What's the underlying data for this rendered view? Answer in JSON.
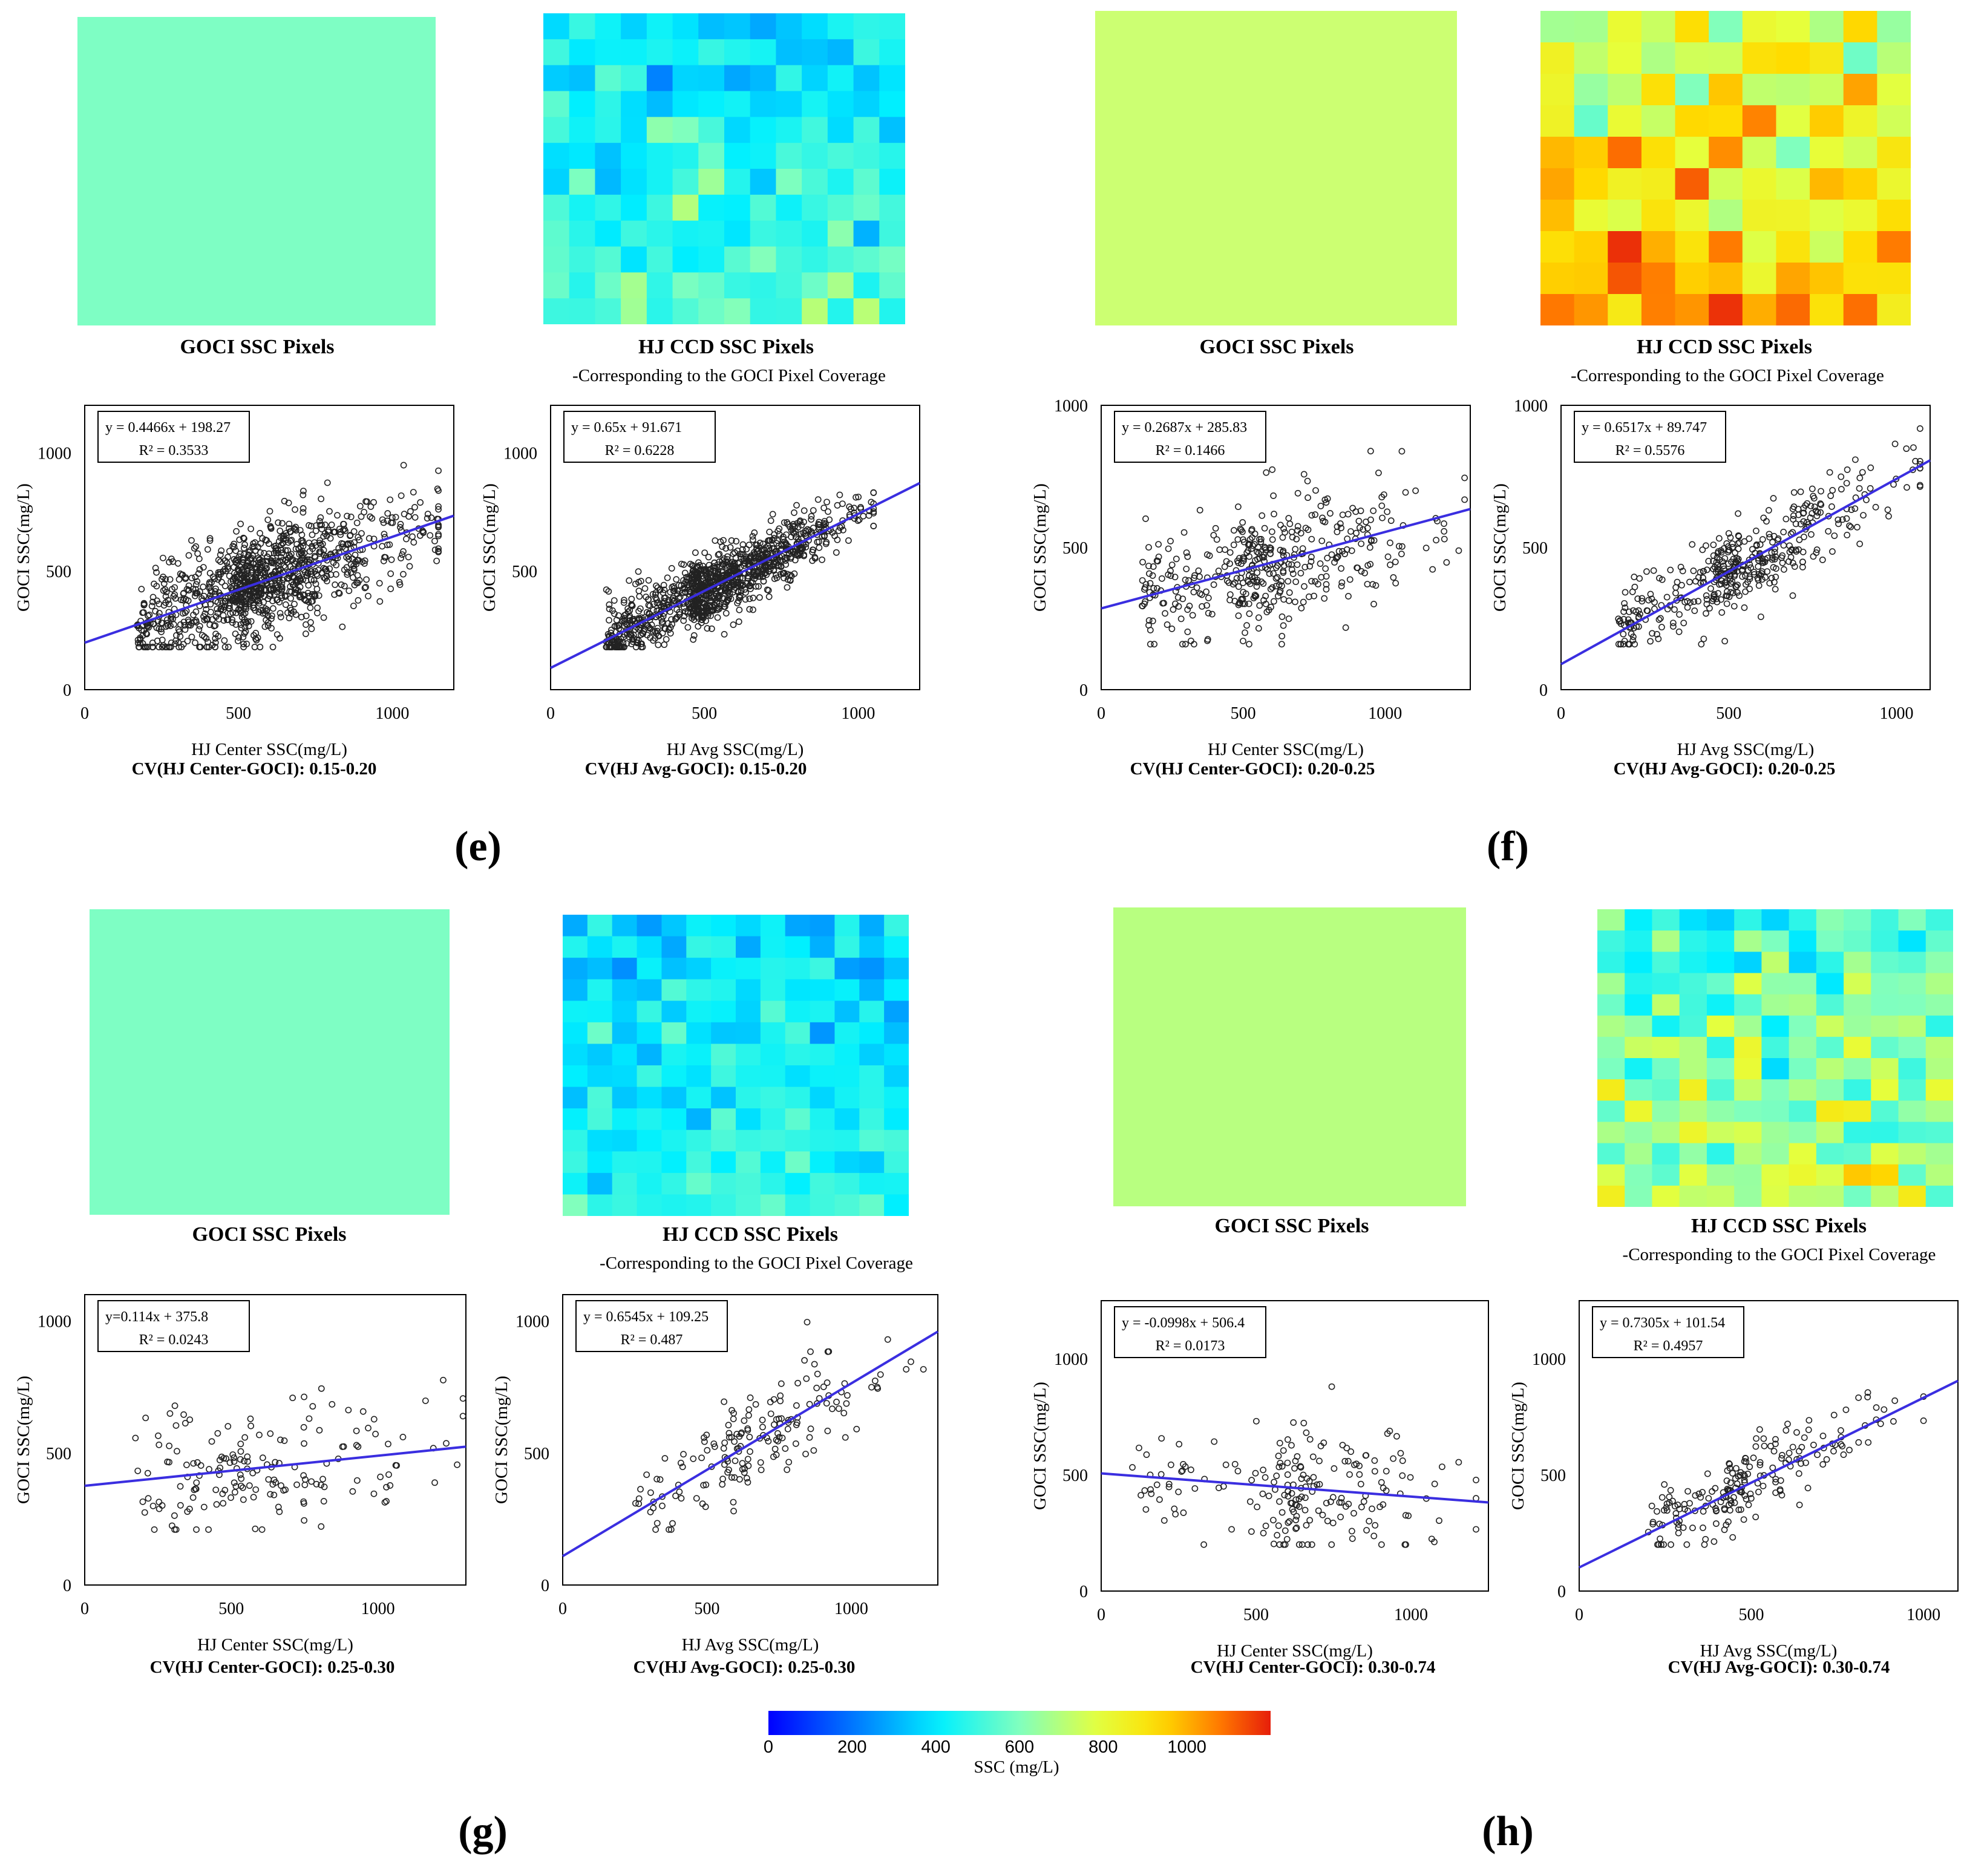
{
  "labels": {
    "goci_title": "GOCI SSC Pixels",
    "hj_title": "HJ CCD SSC Pixels",
    "hj_subtitle": "-Corresponding to the GOCI Pixel Coverage",
    "ylabel": "GOCI SSC(mg/L)",
    "xlabel_center": "HJ Center SSC(mg/L)",
    "xlabel_avg": "HJ Avg SSC(mg/L)"
  },
  "colorbar": {
    "title": "SSC (mg/L)",
    "ticks": [
      "0",
      "200",
      "400",
      "600",
      "800",
      "1000"
    ],
    "tick_values": [
      0,
      200,
      400,
      600,
      800,
      1000
    ],
    "vmax": 1200
  },
  "panels": {
    "e": {
      "letter": "(e)",
      "goci_color": "#7efec4",
      "heat_seed": 11,
      "heat_base": 470,
      "heat_spread": 130,
      "heat_cols": 14,
      "heat_rows": 12,
      "cv_center": "CV(HJ Center-GOCI): 0.15-0.20",
      "cv_avg": "CV(HJ Avg-GOCI): 0.15-0.20"
    },
    "f": {
      "letter": "(f)",
      "goci_color": "#ccff72",
      "heat_seed": 23,
      "heat_base": 880,
      "heat_spread": 170,
      "heat_cols": 11,
      "heat_rows": 10,
      "cv_center": "CV(HJ Center-GOCI): 0.20-0.25",
      "cv_avg": "CV(HJ Avg-GOCI): 0.20-0.25"
    },
    "g": {
      "letter": "(g)",
      "goci_color": "#7efec4",
      "heat_seed": 37,
      "heat_base": 430,
      "heat_spread": 110,
      "heat_cols": 14,
      "heat_rows": 14,
      "cv_center": "CV(HJ Center-GOCI): 0.25-0.30",
      "cv_avg": "CV(HJ Avg-GOCI): 0.25-0.30"
    },
    "h": {
      "letter": "(h)",
      "goci_color": "#b8ff80",
      "heat_seed": 51,
      "heat_base": 620,
      "heat_spread": 200,
      "heat_cols": 13,
      "heat_rows": 14,
      "cv_center": "CV(HJ Center-GOCI): 0.30-0.74",
      "cv_avg": "CV(HJ Avg-GOCI): 0.30-0.74"
    }
  },
  "chart_data": [
    {
      "id": "e-center",
      "type": "scatter",
      "xlabel": "HJ Center SSC(mg/L)",
      "ylabel": "GOCI SSC(mg/L)",
      "xlim": [
        0,
        1200
      ],
      "ylim": [
        0,
        1200
      ],
      "xticks": [
        0,
        500,
        1000
      ],
      "yticks": [
        0,
        500,
        1000
      ],
      "equation": "y = 0.4466x + 198.27",
      "r2": "R² = 0.3533",
      "slope": 0.4466,
      "intercept": 198.27,
      "points": {
        "n": 1100,
        "seed": 101,
        "xmin": 170,
        "xmax": 1150,
        "xmode": 480,
        "spread": 110,
        "ymin": 180,
        "ymax": 1180
      }
    },
    {
      "id": "e-avg",
      "type": "scatter",
      "xlabel": "HJ Avg SSC(mg/L)",
      "ylabel": "GOCI SSC(mg/L)",
      "xlim": [
        0,
        1200
      ],
      "ylim": [
        0,
        1200
      ],
      "xticks": [
        0,
        500,
        1000
      ],
      "yticks": [
        500,
        1000
      ],
      "equation": "y = 0.65x + 91.671",
      "r2": "R² = 0.6228",
      "slope": 0.65,
      "intercept": 91.671,
      "points": {
        "n": 1100,
        "seed": 102,
        "xmin": 180,
        "xmax": 1050,
        "xmode": 450,
        "spread": 70,
        "ymin": 180,
        "ymax": 1180
      }
    },
    {
      "id": "f-center",
      "type": "scatter",
      "xlabel": "HJ Center SSC(mg/L)",
      "ylabel": "GOCI SSC(mg/L)",
      "xlim": [
        0,
        1300
      ],
      "ylim": [
        0,
        1000
      ],
      "xticks": [
        0,
        500,
        1000
      ],
      "yticks": [
        0,
        500,
        1000
      ],
      "equation": "y = 0.2687x + 285.83",
      "r2": "R² = 0.1466",
      "slope": 0.2687,
      "intercept": 285.83,
      "points": {
        "n": 420,
        "seed": 103,
        "xmin": 140,
        "xmax": 1280,
        "xmode": 480,
        "spread": 110,
        "ymin": 160,
        "ymax": 990
      }
    },
    {
      "id": "f-avg",
      "type": "scatter",
      "xlabel": "HJ Avg SSC(mg/L)",
      "ylabel": "GOCI SSC(mg/L)",
      "xlim": [
        0,
        1100
      ],
      "ylim": [
        0,
        1000
      ],
      "xticks": [
        0,
        500,
        1000
      ],
      "yticks": [
        0,
        500,
        1000
      ],
      "equation": "y = 0.6517x + 89.747",
      "r2": "R² = 0.5576",
      "slope": 0.6517,
      "intercept": 89.747,
      "points": {
        "n": 420,
        "seed": 104,
        "xmin": 170,
        "xmax": 1070,
        "xmode": 450,
        "spread": 75,
        "ymin": 160,
        "ymax": 990
      }
    },
    {
      "id": "g-center",
      "type": "scatter",
      "xlabel": "HJ Center SSC(mg/L)",
      "ylabel": "GOCI SSC(mg/L)",
      "xlim": [
        0,
        1300
      ],
      "ylim": [
        0,
        1100
      ],
      "xticks": [
        0,
        500,
        1000
      ],
      "yticks": [
        0,
        500,
        1000
      ],
      "equation": "y=0.114x + 375.8",
      "r2": "R² = 0.0243",
      "slope": 0.114,
      "intercept": 375.8,
      "points": {
        "n": 170,
        "seed": 105,
        "xmin": 170,
        "xmax": 1290,
        "xmode": 450,
        "spread": 130,
        "ymin": 210,
        "ymax": 1040
      }
    },
    {
      "id": "g-avg",
      "type": "scatter",
      "xlabel": "HJ Avg SSC(mg/L)",
      "ylabel": "GOCI SSC(mg/L)",
      "xlim": [
        0,
        1300
      ],
      "ylim": [
        0,
        1100
      ],
      "xticks": [
        0,
        500,
        1000
      ],
      "yticks": [
        0,
        500,
        1000
      ],
      "equation": "y = 0.6545x + 109.25",
      "r2": "R² = 0.487",
      "slope": 0.6545,
      "intercept": 109.25,
      "points": {
        "n": 170,
        "seed": 106,
        "xmin": 220,
        "xmax": 1250,
        "xmode": 550,
        "spread": 90,
        "ymin": 210,
        "ymax": 1040
      }
    },
    {
      "id": "h-center",
      "type": "scatter",
      "xlabel": "HJ Center SSC(mg/L)",
      "ylabel": "GOCI SSC(mg/L)",
      "xlim": [
        0,
        1250
      ],
      "ylim": [
        0,
        1250
      ],
      "xticks": [
        0,
        500,
        1000
      ],
      "yticks": [
        0,
        500,
        1000
      ],
      "equation": "y = -0.0998x + 506.4",
      "r2": "R² = 0.0173",
      "slope": -0.0998,
      "intercept": 506.4,
      "points": {
        "n": 200,
        "seed": 107,
        "xmin": 90,
        "xmax": 1210,
        "xmode": 550,
        "spread": 140,
        "ymin": 200,
        "ymax": 1240
      }
    },
    {
      "id": "h-avg",
      "type": "scatter",
      "xlabel": "HJ Avg SSC(mg/L)",
      "ylabel": "GOCI SSC(mg/L)",
      "xlim": [
        0,
        1100
      ],
      "ylim": [
        0,
        1250
      ],
      "xticks": [
        0,
        500,
        1000
      ],
      "yticks": [
        0,
        500,
        1000
      ],
      "equation": "y = 0.7305x + 101.54",
      "r2": "R² = 0.4957",
      "slope": 0.7305,
      "intercept": 101.54,
      "points": {
        "n": 200,
        "seed": 108,
        "xmin": 200,
        "xmax": 1000,
        "xmode": 420,
        "spread": 75,
        "ymin": 200,
        "ymax": 1240
      }
    }
  ]
}
